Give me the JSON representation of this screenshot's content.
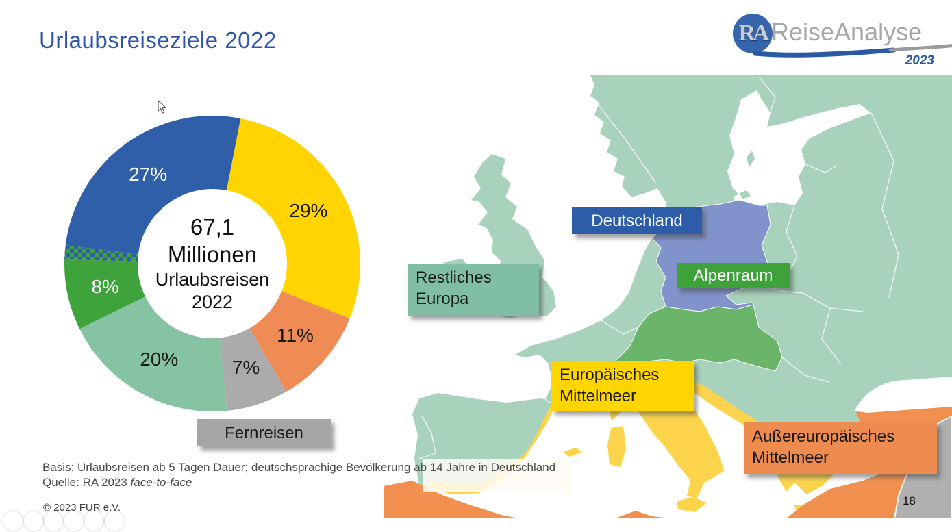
{
  "slide": {
    "title": "Urlaubsreiseziele 2022",
    "page_number": "18",
    "copyright": "© 2023 FUR e.V.",
    "basis_line": "Basis: Urlaubsreisen ab 5 Tagen Dauer; deutschsprachige Bevölkerung ab 14 Jahre in Deutschland",
    "source_prefix": "Quelle: RA 2023 ",
    "source_italic": "face-to-face"
  },
  "logo": {
    "monogram": "RA",
    "name": "ReiseAnalyse",
    "year": "2023",
    "circle_color": "#3765AB",
    "name_color": "#A6A6A6",
    "year_color": "#2B5AA5"
  },
  "chart_data": {
    "type": "donut",
    "title": "Urlaubsreiseziele 2022",
    "center_lines": [
      "67,1",
      "Millionen",
      "Urlaubsreisen",
      "2022"
    ],
    "start_angle_deg": 11,
    "legend_position": "map-labels",
    "segments": [
      {
        "label": "Europäisches Mittelmeer",
        "display": "29%",
        "value": 29,
        "color": "#FFD401",
        "label_color": "#1a1a1a"
      },
      {
        "label": "Außereuropäisches Mittelmeer",
        "display": "11%",
        "value": 11,
        "color": "#EF8C55",
        "label_color": "#1a1a1a"
      },
      {
        "label": "Fernreisen",
        "display": "7%",
        "value": 7,
        "color": "#ABABAB",
        "label_color": "#1a1a1a"
      },
      {
        "label": "Restliches Europa",
        "display": "20%",
        "value": 20,
        "color": "#86C3A2",
        "label_color": "#1a1a1a"
      },
      {
        "label": "Alpenraum",
        "display": "8%",
        "value": 8,
        "color": "#3FA33C",
        "label_color": "#ffffff"
      },
      {
        "label": "",
        "display": "",
        "value": 1.6,
        "pattern": "checker",
        "color": "#2E5FA8",
        "color2": "#3FA33C"
      },
      {
        "label": "Deutschland",
        "display": "27%",
        "value": 27,
        "color": "#2E5FA8",
        "label_color": "#ffffff"
      }
    ]
  },
  "map": {
    "region_colors": {
      "sea": "#FFFFFF",
      "rest_europe": "#A9D2BD",
      "germany": "#8094CB",
      "alpenraum": "#6BB56B",
      "europaeisches_mittelmeer": "#FBD44C",
      "aussereuropaeisches_mittelmeer": "#F2914F",
      "fernreisen_region": "#B0B0B0"
    },
    "labels": [
      {
        "text": "Deutschland",
        "bg": "#2D5CA9",
        "fg": "#FFFFFF"
      },
      {
        "text": "Alpenraum",
        "bg": "#3EA23A",
        "fg": "#FFFFFF"
      },
      {
        "line1": "Restliches",
        "line2": "Europa",
        "bg": "#80BFA3",
        "fg": "#1a1a1a"
      },
      {
        "line1": "Europäisches",
        "line2": "Mittelmeer",
        "bg": "#FFD500",
        "fg": "#1a1a1a"
      },
      {
        "line1": "Außereuropäisches",
        "line2": "Mittelmeer",
        "bg": "#EE8B4E",
        "fg": "#1a1a1a"
      },
      {
        "text": "Fernreisen",
        "bg": "#A6A6A6",
        "fg": "#1a1a1a"
      }
    ]
  }
}
